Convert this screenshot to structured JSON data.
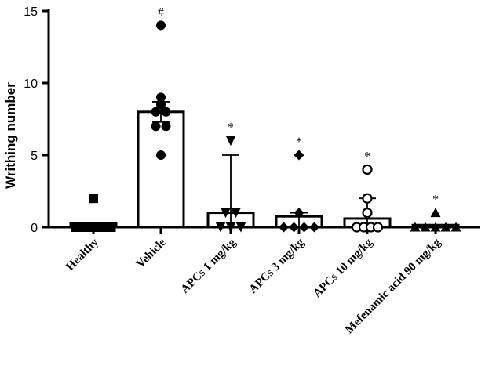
{
  "chart_data": {
    "type": "bar",
    "title": "",
    "xlabel": "",
    "ylabel": "Writhing number",
    "ylim": [
      0,
      15
    ],
    "yticks": [
      0,
      5,
      10,
      15
    ],
    "grid": false,
    "categories": [
      "Healthy",
      "Vehicle",
      "APCs 1 mg/kg",
      "APCs 3 mg/kg",
      "APCs 10 mg/kg",
      "Mefenamic acid 90 mg/kg"
    ],
    "means": [
      0.25,
      8.0,
      1.0,
      0.75,
      0.6,
      0.15
    ],
    "errors": [
      null,
      {
        "low": 7.3,
        "high": 8.7
      },
      {
        "low": 0,
        "high": 5.0
      },
      {
        "low": 0,
        "high": 1.0
      },
      {
        "low": 0,
        "high": 2.0
      },
      null
    ],
    "points": [
      [
        2,
        0,
        0,
        0,
        0,
        0,
        0
      ],
      [
        14,
        9,
        8.5,
        8,
        8,
        7,
        7,
        5
      ],
      [
        6,
        1,
        1,
        0,
        0,
        0
      ],
      [
        5,
        1,
        0,
        0,
        0,
        0
      ],
      [
        4,
        2,
        1,
        0,
        0,
        0,
        0
      ],
      [
        1,
        0,
        0,
        0,
        0,
        0
      ]
    ],
    "markers": [
      "square",
      "circle",
      "triangle-down",
      "diamond",
      "circle-open",
      "triangle-up"
    ],
    "annotations": [
      "",
      "#",
      "*",
      "*",
      "*",
      "*"
    ]
  }
}
